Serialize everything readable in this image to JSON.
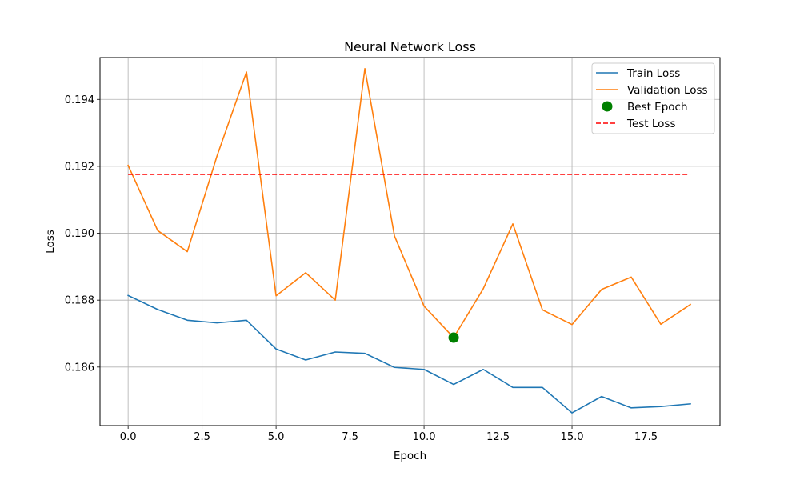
{
  "chart_data": {
    "type": "line",
    "title": "Neural Network Loss",
    "xlabel": "Epoch",
    "ylabel": "Loss",
    "xlim": [
      -0.95,
      20.0
    ],
    "ylim": [
      0.18425,
      0.19525
    ],
    "x_ticks": [
      0.0,
      2.5,
      5.0,
      7.5,
      10.0,
      12.5,
      15.0,
      17.5
    ],
    "x_tick_labels": [
      "0.0",
      "2.5",
      "5.0",
      "7.5",
      "10.0",
      "12.5",
      "15.0",
      "17.5"
    ],
    "y_ticks": [
      0.186,
      0.188,
      0.19,
      0.192,
      0.194
    ],
    "y_tick_labels": [
      "0.186",
      "0.188",
      "0.190",
      "0.192",
      "0.194"
    ],
    "grid": true,
    "legend_position": "top-right",
    "x": [
      0,
      1,
      2,
      3,
      4,
      5,
      6,
      7,
      8,
      9,
      10,
      11,
      12,
      13,
      14,
      15,
      16,
      17,
      18,
      19
    ],
    "series": [
      {
        "name": "Train Loss",
        "style": "line",
        "color": "#1f77b4",
        "values": [
          0.18814,
          0.18772,
          0.1874,
          0.18732,
          0.1874,
          0.18654,
          0.18621,
          0.18645,
          0.18641,
          0.18599,
          0.18593,
          0.18548,
          0.18593,
          0.18539,
          0.18539,
          0.18463,
          0.18512,
          0.18478,
          0.18482,
          0.1849
        ]
      },
      {
        "name": "Validation Loss",
        "style": "line",
        "color": "#ff7f0e",
        "values": [
          0.19203,
          0.19008,
          0.18945,
          0.1923,
          0.19482,
          0.18813,
          0.18882,
          0.188,
          0.19492,
          0.18992,
          0.18782,
          0.18688,
          0.18834,
          0.19028,
          0.18771,
          0.18727,
          0.18832,
          0.18869,
          0.18728,
          0.18787
        ]
      },
      {
        "name": "Best Epoch",
        "style": "scatter",
        "color": "#008000",
        "points": [
          {
            "x": 11,
            "y": 0.18688
          }
        ]
      },
      {
        "name": "Test Loss",
        "style": "dashed-line",
        "color": "#ff0000",
        "x_range": [
          0,
          19
        ],
        "value": 0.19176
      }
    ]
  }
}
